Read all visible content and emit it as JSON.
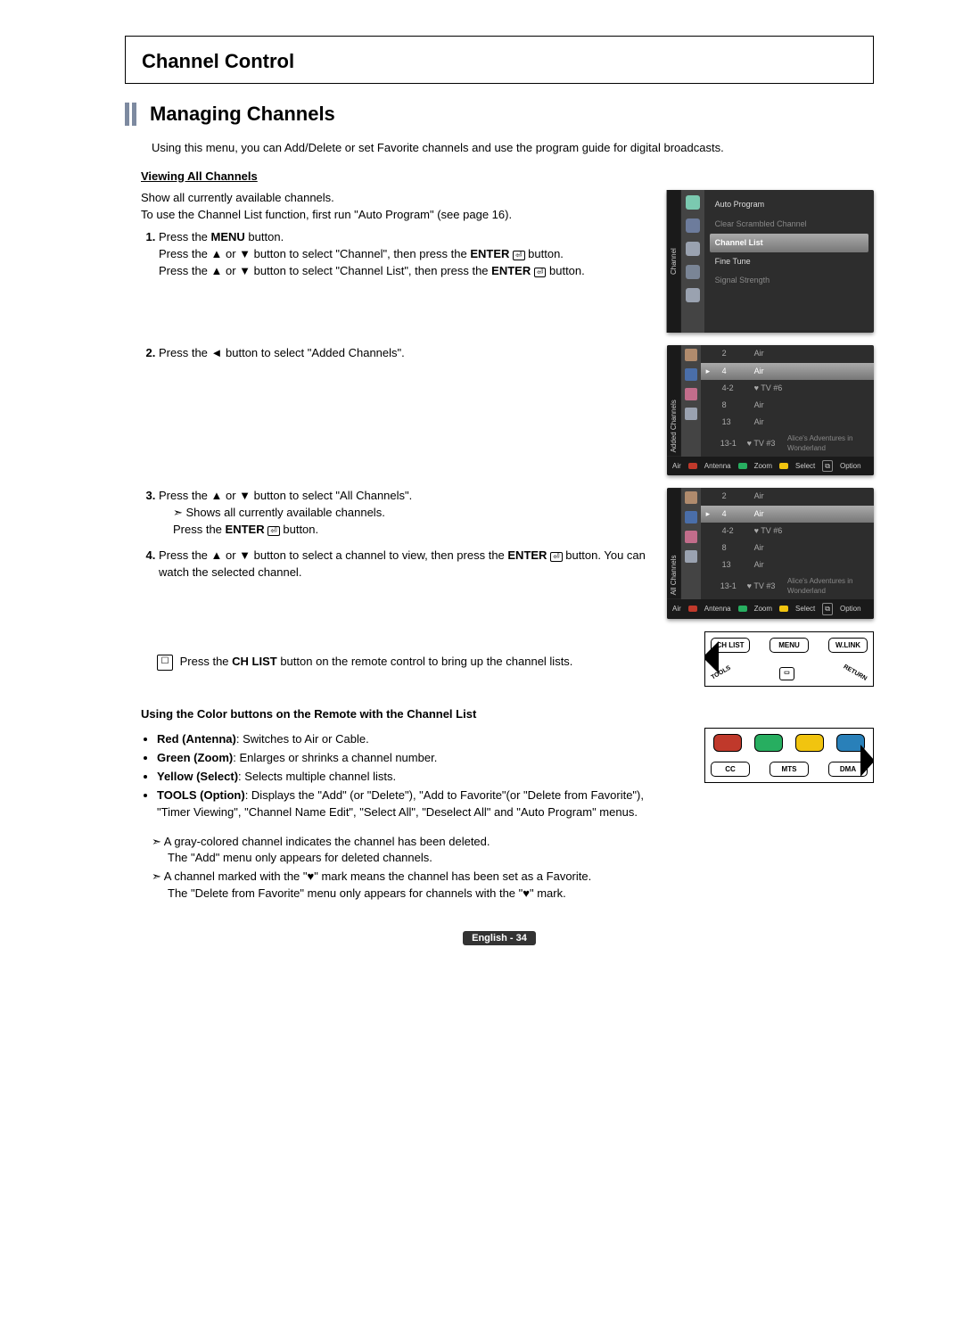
{
  "section_title": "Channel Control",
  "subsection_title": "Managing Channels",
  "intro": "Using this menu, you can Add/Delete or set Favorite channels and use the program guide for digital broadcasts.",
  "mini_heading": "Viewing All Channels",
  "desc1": "Show all currently available channels.",
  "desc2": "To use the Channel List function, first run \"Auto Program\" (see page 16).",
  "step1_a": "Press the ",
  "step1_menu": "MENU",
  "step1_b": " button.",
  "step1_c": "Press the ▲ or ▼ button to select \"Channel\", then press the ",
  "step1_enter": "ENTER",
  "step1_d": " button.",
  "step1_e": "Press the ▲ or ▼ button to select \"Channel List\", then press the ",
  "step1_f": " button.",
  "step2": "Press the ◄ button to select \"Added Channels\".",
  "step3_a": "Press the ▲ or ▼ button to select \"All Channels\".",
  "step3_note": "Shows all currently available channels.",
  "step3_b": "Press the ",
  "step3_c": " button.",
  "step4_a": "Press the ▲ or ▼ button to select a channel to view, then press the ",
  "step4_b": " button. You can watch the selected channel.",
  "remote_note_a": "Press the ",
  "remote_note_btn": "CH LIST",
  "remote_note_b": " button on the remote control to bring up the channel lists.",
  "color_heading": "Using the Color buttons on the Remote with the Channel List",
  "bullet_red_b": "Red (Antenna)",
  "bullet_red_t": ": Switches to Air or Cable.",
  "bullet_green_b": "Green (Zoom)",
  "bullet_green_t": ": Enlarges or shrinks a channel number.",
  "bullet_yellow_b": "Yellow (Select)",
  "bullet_yellow_t": ": Selects multiple channel lists.",
  "bullet_tools_b": "TOOLS (Option)",
  "bullet_tools_t": ": Displays the \"Add\" (or \"Delete\"), \"Add to Favorite\"(or \"Delete from Favorite\"), \"Timer Viewing\", \"Channel Name Edit\", \"Select All\", \"Deselect All\" and \"Auto Program\" menus.",
  "note1_a": "A gray-colored channel indicates the channel has been deleted.",
  "note1_b": "The \"Add\" menu only appears for deleted channels.",
  "note2_a": "A channel marked with the \"♥\" mark means the channel has been set as a Favorite.",
  "note2_b": "The \"Delete from Favorite\" menu only appears for channels with the \"♥\" mark.",
  "footer": "English - 34",
  "tv_menu": {
    "label": "Channel",
    "items": [
      {
        "label": "Auto Program",
        "cls": "bright"
      },
      {
        "label": "Clear Scrambled Channel",
        "cls": ""
      },
      {
        "label": "Channel List",
        "cls": "sel"
      },
      {
        "label": "Fine Tune",
        "cls": "bright"
      },
      {
        "label": "Signal Strength",
        "cls": ""
      }
    ],
    "icon_colors": [
      "#7bc9b0",
      "#6d7c9c",
      "#9aa2b0",
      "#7a8596",
      "#9aa2b0"
    ]
  },
  "added_list": {
    "label": "Added Channels",
    "side_icon_colors": [
      "#b08b6d",
      "#4a6ea9",
      "#c26d8b",
      "#9aa2b0"
    ],
    "rows": [
      {
        "no": "2",
        "lbl": "Air",
        "title": "",
        "sel": false,
        "dot": ""
      },
      {
        "no": "4",
        "lbl": "Air",
        "title": "",
        "sel": true,
        "dot": "▸"
      },
      {
        "no": "4-2",
        "lbl": "♥ TV #6",
        "title": "",
        "sel": false,
        "dot": ""
      },
      {
        "no": "8",
        "lbl": "Air",
        "title": "",
        "sel": false,
        "dot": ""
      },
      {
        "no": "13",
        "lbl": "Air",
        "title": "",
        "sel": false,
        "dot": ""
      },
      {
        "no": "13-1",
        "lbl": "♥ TV #3",
        "title": "Alice's Adventures in Wonderland",
        "sel": false,
        "dot": ""
      }
    ]
  },
  "all_list": {
    "label": "All Channels",
    "side_icon_colors": [
      "#b08b6d",
      "#4a6ea9",
      "#c26d8b",
      "#9aa2b0"
    ],
    "rows": [
      {
        "no": "2",
        "lbl": "Air",
        "title": "",
        "sel": false,
        "dot": ""
      },
      {
        "no": "4",
        "lbl": "Air",
        "title": "",
        "sel": true,
        "dot": "▸"
      },
      {
        "no": "4-2",
        "lbl": "♥ TV #6",
        "title": "",
        "sel": false,
        "dot": ""
      },
      {
        "no": "8",
        "lbl": "Air",
        "title": "",
        "sel": false,
        "dot": ""
      },
      {
        "no": "13",
        "lbl": "Air",
        "title": "",
        "sel": false,
        "dot": ""
      },
      {
        "no": "13-1",
        "lbl": "♥ TV #3",
        "title": "Alice's Adventures in Wonderland",
        "sel": false,
        "dot": ""
      }
    ]
  },
  "ch_footer": {
    "air": "Air",
    "antenna_color": "#c0392b",
    "antenna": "Antenna",
    "zoom_color": "#27ae60",
    "zoom": "Zoom",
    "select_color": "#f1c40f",
    "select": "Select",
    "option": "Option"
  },
  "remote1": {
    "b1": "CH LIST",
    "b2": "MENU",
    "b3": "W.LINK",
    "tools": "TOOLS",
    "return": "RETURN"
  },
  "remote2": {
    "colors": [
      "#c0392b",
      "#27ae60",
      "#f1c40f",
      "#2980b9"
    ],
    "b1": "CC",
    "b2": "MTS",
    "b3": "DMA"
  }
}
